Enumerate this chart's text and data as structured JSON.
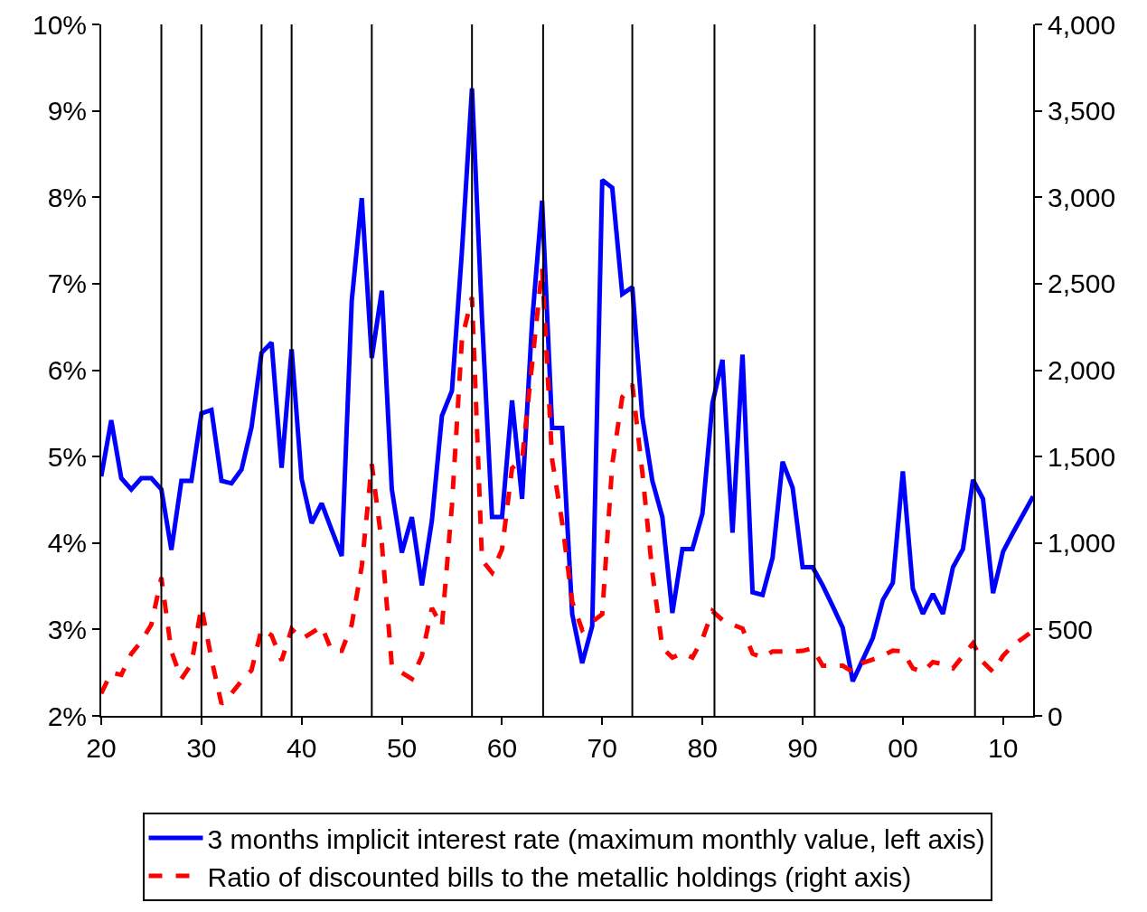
{
  "chart_data": {
    "type": "line",
    "x": [
      1920,
      1921,
      1922,
      1923,
      1924,
      1925,
      1926,
      1927,
      1928,
      1929,
      1930,
      1931,
      1932,
      1933,
      1934,
      1935,
      1936,
      1937,
      1938,
      1939,
      1940,
      1941,
      1942,
      1943,
      1944,
      1945,
      1946,
      1947,
      1948,
      1949,
      1950,
      1951,
      1952,
      1953,
      1954,
      1955,
      1956,
      1957,
      1958,
      1959,
      1960,
      1961,
      1962,
      1963,
      1964,
      1965,
      1966,
      1967,
      1968,
      1969,
      1970,
      1971,
      1972,
      1973,
      1974,
      1975,
      1976,
      1977,
      1978,
      1979,
      1980,
      1981,
      1982,
      1983,
      1984,
      1985,
      1986,
      1987,
      1988,
      1989,
      1990,
      1991,
      1992,
      1993,
      1994,
      1995,
      1996,
      1997,
      1998,
      1999,
      2000,
      2001,
      2002,
      2003,
      2004,
      2005,
      2006,
      2007,
      2008,
      2009,
      2010,
      2011,
      2012,
      2013
    ],
    "series": [
      {
        "name": "3 months implicit interest rate (maximum monthly value, left axis)",
        "color": "#0000ff",
        "line_style": "solid",
        "values": [
          4.77,
          5.42,
          4.75,
          4.62,
          4.75,
          4.75,
          4.62,
          3.92,
          4.72,
          4.72,
          5.5,
          5.54,
          4.72,
          4.69,
          4.85,
          5.34,
          6.2,
          6.32,
          4.87,
          6.24,
          4.74,
          4.23,
          4.46,
          4.15,
          3.85,
          6.8,
          7.99,
          6.14,
          6.92,
          4.62,
          3.89,
          4.3,
          3.51,
          4.26,
          5.47,
          5.76,
          7.38,
          9.26,
          6.6,
          4.3,
          4.3,
          5.65,
          4.51,
          6.56,
          7.96,
          5.33,
          5.33,
          3.18,
          2.61,
          3.04,
          8.2,
          8.11,
          6.88,
          6.96,
          5.46,
          4.72,
          4.3,
          3.19,
          3.93,
          3.93,
          4.34,
          5.62,
          6.12,
          4.12,
          6.18,
          3.43,
          3.4,
          3.83,
          4.94,
          4.64,
          3.72,
          3.72,
          3.51,
          3.27,
          3.02,
          2.4,
          2.65,
          2.9,
          3.34,
          3.54,
          4.83,
          3.47,
          3.18,
          3.41,
          3.18,
          3.72,
          3.93,
          4.73,
          4.51,
          3.42,
          3.9,
          4.12,
          4.33,
          4.54
        ]
      },
      {
        "name": "Ratio of discounted bills to the metallic holdings (right axis)",
        "color": "#ff0000",
        "line_style": "dashed",
        "axis": "y2",
        "values": [
          130,
          250,
          237,
          359,
          431,
          528,
          800,
          373,
          214,
          300,
          630,
          330,
          69,
          130,
          202,
          264,
          502,
          466,
          320,
          502,
          445,
          480,
          518,
          376,
          376,
          528,
          865,
          1456,
          1000,
          290,
          250,
          214,
          347,
          624,
          518,
          1217,
          2181,
          2422,
          901,
          829,
          964,
          1433,
          1482,
          2036,
          2591,
          1482,
          1119,
          661,
          497,
          544,
          588,
          1457,
          1844,
          1917,
          1409,
          829,
          394,
          337,
          365,
          337,
          445,
          606,
          554,
          528,
          505,
          360,
          337,
          373,
          373,
          373,
          376,
          391,
          290,
          290,
          290,
          254,
          306,
          326,
          348,
          378,
          373,
          275,
          254,
          311,
          300,
          275,
          347,
          420,
          311,
          254,
          347,
          409,
          450,
          492
        ]
      }
    ],
    "xlim": [
      1920,
      2013
    ],
    "xticks": [
      {
        "value": 1920,
        "label": "20"
      },
      {
        "value": 1930,
        "label": "30"
      },
      {
        "value": 1940,
        "label": "40"
      },
      {
        "value": 1950,
        "label": "50"
      },
      {
        "value": 1960,
        "label": "60"
      },
      {
        "value": 1970,
        "label": "70"
      },
      {
        "value": 1980,
        "label": "80"
      },
      {
        "value": 1990,
        "label": "90"
      },
      {
        "value": 2000,
        "label": "00"
      },
      {
        "value": 2010,
        "label": "10"
      }
    ],
    "ylim": [
      2,
      10
    ],
    "yticks": [
      {
        "value": 2,
        "label": "2%"
      },
      {
        "value": 3,
        "label": "3%"
      },
      {
        "value": 4,
        "label": "4%"
      },
      {
        "value": 5,
        "label": "5%"
      },
      {
        "value": 6,
        "label": "6%"
      },
      {
        "value": 7,
        "label": "7%"
      },
      {
        "value": 8,
        "label": "8%"
      },
      {
        "value": 9,
        "label": "9%"
      },
      {
        "value": 10,
        "label": "10%"
      }
    ],
    "y2lim": [
      0,
      4000
    ],
    "y2ticks": [
      0,
      500,
      {
        "value": 1000,
        "label": "1,000"
      },
      {
        "value": 1500,
        "label": "1,500"
      },
      {
        "value": 2000,
        "label": "2,000"
      },
      {
        "value": 2500,
        "label": "2,500"
      },
      {
        "value": 3000,
        "label": "3,000"
      },
      {
        "value": 3500,
        "label": "3,500"
      },
      {
        "value": 4000,
        "label": "4,000"
      }
    ],
    "ref_lines": [
      {
        "axis": "x",
        "value": 1926,
        "color": "#000000"
      },
      {
        "axis": "x",
        "value": 1930,
        "color": "#000000"
      },
      {
        "axis": "x",
        "value": 1936,
        "color": "#000000"
      },
      {
        "axis": "x",
        "value": 1939,
        "color": "#000000"
      },
      {
        "axis": "x",
        "value": 1947,
        "color": "#000000"
      },
      {
        "axis": "x",
        "value": 1957,
        "color": "#000000"
      },
      {
        "axis": "x",
        "value": 1964.1,
        "color": "#000000"
      },
      {
        "axis": "x",
        "value": 1973,
        "color": "#000000"
      },
      {
        "axis": "x",
        "value": 1981.2,
        "color": "#000000"
      },
      {
        "axis": "x",
        "value": 1991.2,
        "color": "#000000"
      },
      {
        "axis": "x",
        "value": 2007.2,
        "color": "#000000"
      }
    ],
    "grid": false,
    "marker": "none",
    "legend": "bottom"
  }
}
